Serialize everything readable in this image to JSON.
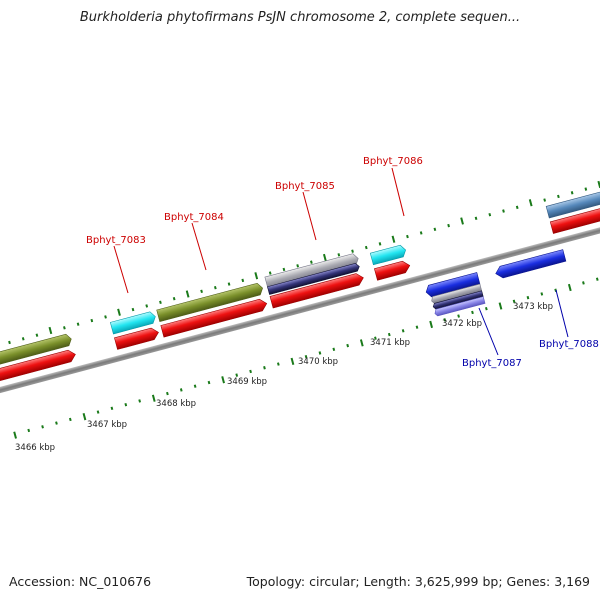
{
  "title": "Burkholderia phytofirmans PsJN chromosome 2, complete sequen...",
  "footer": {
    "accession": "Accession: NC_010676",
    "stats": "Topology: circular; Length: 3,625,999 bp; Genes: 3,169"
  },
  "colors": {
    "forward_gene_label": "#cc0000",
    "reverse_gene_label": "#0000aa",
    "tick": "#1a7a1a",
    "backbone": "#888888",
    "red_gene": "#ee1111",
    "cyan_gene": "#22e5f0",
    "olive_gene": "#7a8f2a",
    "grey_gene": "#a8a8b0",
    "navy_gene": "#333377",
    "blue_gene": "#1a2ee0",
    "steel_gene": "#5588bb"
  },
  "kbp_labels": [
    "3466 kbp",
    "3467 kbp",
    "3468 kbp",
    "3469 kbp",
    "3470 kbp",
    "3471 kbp",
    "3472 kbp",
    "3473 kbp"
  ],
  "gene_labels": [
    {
      "name": "Bphyt_7083",
      "strand": "forward"
    },
    {
      "name": "Bphyt_7084",
      "strand": "forward"
    },
    {
      "name": "Bphyt_7085",
      "strand": "forward"
    },
    {
      "name": "Bphyt_7086",
      "strand": "forward"
    },
    {
      "name": "Bphyt_7087",
      "strand": "reverse"
    },
    {
      "name": "Bphyt_7088",
      "strand": "reverse"
    }
  ]
}
